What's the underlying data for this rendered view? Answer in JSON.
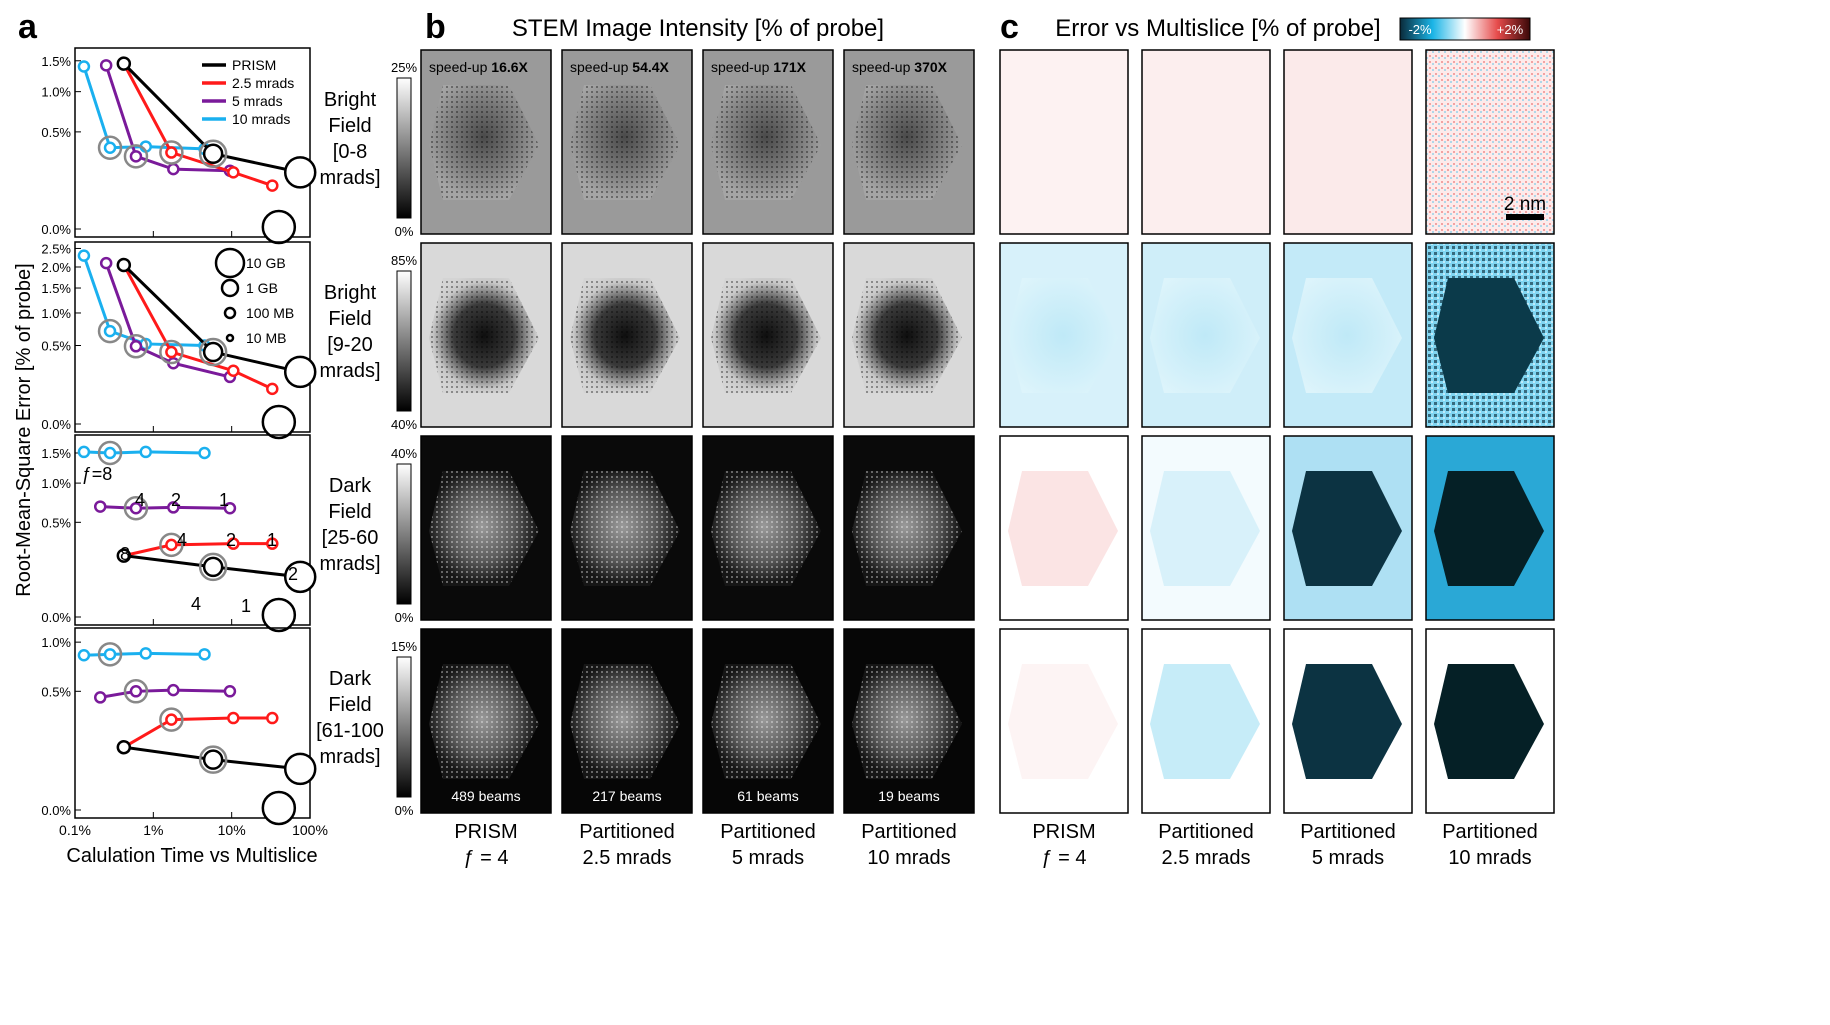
{
  "panel_labels": {
    "a": "a",
    "b": "b",
    "c": "c"
  },
  "titles": {
    "b": "STEM Image Intensity [% of probe]",
    "c": "Error vs Multislice [% of probe]",
    "colorbar_neg": "-2%",
    "colorbar_pos": "+2%"
  },
  "colors": {
    "PRISM": "#000000",
    "2.5 mrads": "#ff1a1a",
    "5 mrads": "#7a1a9a",
    "10 mrads": "#1ab0ef",
    "error_neg": "#1ab4e6",
    "error_pos": "#e64b4b"
  },
  "plot_axes": {
    "ylabel": "Root-Mean-Square Error [% of probe]",
    "xlabel": "Calulation Time vs Multislice",
    "xticks": [
      "0.1%",
      "1%",
      "10%",
      "100%"
    ]
  },
  "legend_series": [
    "PRISM",
    "2.5 mrads",
    "5 mrads",
    "10 mrads"
  ],
  "legend_sizes": [
    "10 GB",
    "1 GB",
    "100 MB",
    "10 MB"
  ],
  "row_labels": [
    [
      "Bright",
      "Field",
      "[0-8",
      "mrads]"
    ],
    [
      "Bright",
      "Field",
      "[9-20",
      "mrads]"
    ],
    [
      "Dark",
      "Field",
      "[25-60",
      "mrads]"
    ],
    [
      "Dark",
      "Field",
      "[61-100",
      "mrads]"
    ]
  ],
  "intensity_scales": [
    {
      "max": "25%",
      "min": "0%"
    },
    {
      "max": "85%",
      "min": "40%"
    },
    {
      "max": "40%",
      "min": "0%"
    },
    {
      "max": "15%",
      "min": "0%"
    }
  ],
  "speedups": {
    "prefix": "speed-up",
    "values": [
      "16.6X",
      "54.4X",
      "171X",
      "370X"
    ]
  },
  "beams": [
    "489 beams",
    "217 beams",
    "61 beams",
    "19 beams"
  ],
  "scale_bar": "2 nm",
  "column_labels": [
    [
      "PRISM",
      "ƒ = 4"
    ],
    [
      "Partitioned",
      "2.5 mrads"
    ],
    [
      "Partitioned",
      "5 mrads"
    ],
    [
      "Partitioned",
      "10 mrads"
    ]
  ],
  "f_annotations": {
    "prism": [
      "ƒ=8",
      "4",
      "2",
      "1"
    ],
    "red": [
      "8",
      "4",
      "2",
      "1"
    ],
    "black": [
      "4",
      "1",
      "2"
    ]
  },
  "chart_data": [
    {
      "type": "line",
      "title": "Bright Field [0-8 mrads]",
      "xlabel": "Calulation Time vs Multislice",
      "ylabel": "Root-Mean-Square Error [% of probe]",
      "xscale": "log",
      "xlim": [
        "0.1%",
        "100%"
      ],
      "yticks": [
        "0.0%",
        "0.5%",
        "1.0%",
        "1.5%"
      ],
      "series": [
        {
          "name": "10 mrads",
          "x": [
            0.13,
            0.28,
            0.8,
            4.5
          ],
          "y": [
            1.4,
            0.35,
            0.36,
            0.34
          ]
        },
        {
          "name": "5 mrads",
          "x": [
            0.25,
            0.6,
            1.8,
            9.5
          ],
          "y": [
            1.42,
            0.28,
            0.19,
            0.18
          ]
        },
        {
          "name": "2.5 mrads",
          "x": [
            0.42,
            1.7,
            10.5,
            33
          ],
          "y": [
            1.45,
            0.31,
            0.17,
            0.1
          ]
        },
        {
          "name": "PRISM",
          "x": [
            0.42,
            5.8,
            75
          ],
          "y": [
            1.45,
            0.3,
            0.17
          ]
        }
      ]
    },
    {
      "type": "line",
      "title": "Bright Field [9-20 mrads]",
      "xscale": "log",
      "yticks": [
        "0.0%",
        "0.5%",
        "1.0%",
        "1.5%",
        "2.0%",
        "2.5%"
      ],
      "series": [
        {
          "name": "10 mrads",
          "x": [
            0.13,
            0.28,
            0.8,
            4.5
          ],
          "y": [
            2.3,
            0.7,
            0.52,
            0.5
          ]
        },
        {
          "name": "5 mrads",
          "x": [
            0.25,
            0.6,
            1.8,
            9.5
          ],
          "y": [
            2.1,
            0.49,
            0.3,
            0.18
          ]
        },
        {
          "name": "2.5 mrads",
          "x": [
            0.42,
            1.7,
            10.5,
            33
          ],
          "y": [
            2.05,
            0.42,
            0.23,
            0.1
          ]
        },
        {
          "name": "PRISM",
          "x": [
            0.42,
            5.8,
            75
          ],
          "y": [
            2.05,
            0.42,
            0.22
          ]
        }
      ]
    },
    {
      "type": "line",
      "title": "Dark Field [25-60 mrads]",
      "xscale": "log",
      "yticks": [
        "0.0%",
        "0.5%",
        "1.0%",
        "1.5%"
      ],
      "series": [
        {
          "name": "10 mrads",
          "x": [
            0.13,
            0.28,
            0.8,
            4.5
          ],
          "y": [
            1.52,
            1.5,
            1.52,
            1.5
          ],
          "f": [
            8,
            4,
            2,
            1
          ]
        },
        {
          "name": "5 mrads",
          "x": [
            0.21,
            0.6,
            1.8,
            9.5
          ],
          "y": [
            0.68,
            0.66,
            0.67,
            0.66
          ]
        },
        {
          "name": "2.5 mrads",
          "x": [
            0.42,
            1.7,
            10.5,
            33
          ],
          "y": [
            0.21,
            0.29,
            0.3,
            0.3
          ],
          "f": [
            8,
            4,
            2,
            1
          ]
        },
        {
          "name": "PRISM",
          "x": [
            0.42,
            5.8,
            75
          ],
          "y": [
            0.21,
            0.14,
            0.09
          ],
          "f": [
            8,
            4,
            2
          ]
        }
      ]
    },
    {
      "type": "line",
      "title": "Dark Field [61-100 mrads]",
      "xscale": "log",
      "yticks": [
        "0.0%",
        "0.5%",
        "1.0%"
      ],
      "series": [
        {
          "name": "10 mrads",
          "x": [
            0.13,
            0.28,
            0.8,
            4.5
          ],
          "y": [
            0.85,
            0.86,
            0.87,
            0.86
          ]
        },
        {
          "name": "5 mrads",
          "x": [
            0.21,
            0.6,
            1.8,
            9.5
          ],
          "y": [
            0.45,
            0.5,
            0.51,
            0.5
          ]
        },
        {
          "name": "2.5 mrads",
          "x": [
            0.42,
            1.7,
            10.5,
            33
          ],
          "y": [
            0.14,
            0.29,
            0.3,
            0.3
          ]
        },
        {
          "name": "PRISM",
          "x": [
            0.42,
            5.8,
            75
          ],
          "y": [
            0.14,
            0.09,
            0.06
          ]
        }
      ]
    }
  ]
}
